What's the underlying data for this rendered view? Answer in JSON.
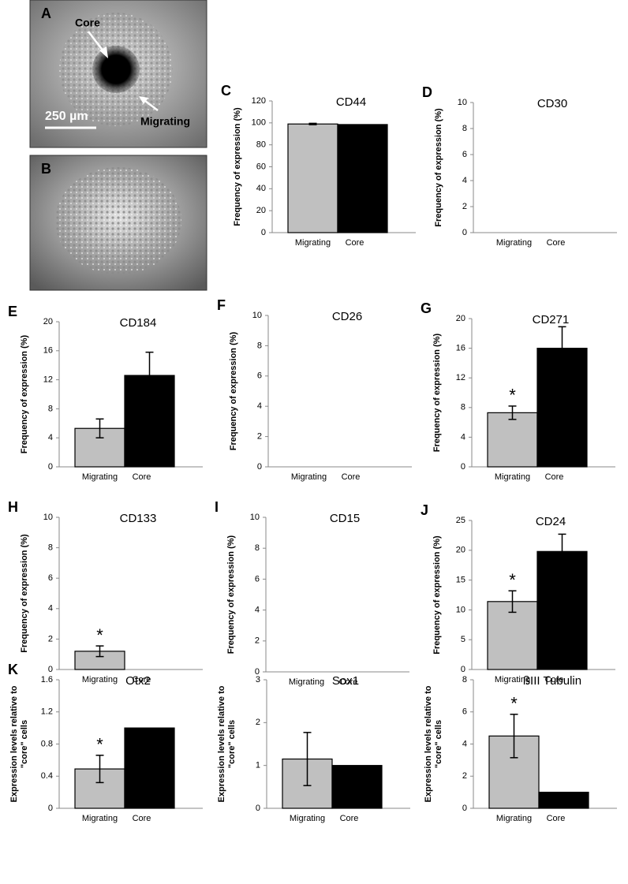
{
  "images": [
    {
      "label": "A",
      "texts": [
        "Core",
        "Migrating",
        "250 µm"
      ]
    },
    {
      "label": "B"
    }
  ],
  "chart_data": [
    {
      "type": "bar",
      "panel_label": "C",
      "title": "CD44",
      "ylabel": [
        "Frequency of expression (%)"
      ],
      "categories": [
        "Migrating",
        "Core"
      ],
      "values": [
        99,
        98.5
      ],
      "errors": [
        0.6,
        null
      ],
      "significance": [
        null,
        null
      ],
      "colors": [
        "#c0c0c0",
        "#000000"
      ],
      "ylim": [
        0,
        120
      ],
      "yticks": [
        0,
        20,
        40,
        60,
        80,
        100,
        120
      ]
    },
    {
      "type": "bar",
      "panel_label": "D",
      "title": "CD30",
      "ylabel": [
        "Frequency of expression (%)"
      ],
      "categories": [
        "Migrating",
        "Core"
      ],
      "values": [
        0,
        0
      ],
      "errors": [
        null,
        null
      ],
      "significance": [
        null,
        null
      ],
      "colors": [
        "#c0c0c0",
        "#000000"
      ],
      "ylim": [
        0,
        10
      ],
      "yticks": [
        0,
        2,
        4,
        6,
        8,
        10
      ]
    },
    {
      "type": "bar",
      "panel_label": "E",
      "title": "CD184",
      "ylabel": [
        "Frequency of expression (%)"
      ],
      "categories": [
        "Migrating",
        "Core"
      ],
      "values": [
        5.3,
        12.6
      ],
      "errors": [
        1.3,
        3.2
      ],
      "significance": [
        null,
        null
      ],
      "colors": [
        "#c0c0c0",
        "#000000"
      ],
      "ylim": [
        0,
        20
      ],
      "yticks": [
        0,
        4,
        8,
        12,
        16,
        20
      ]
    },
    {
      "type": "bar",
      "panel_label": "F",
      "title": "CD26",
      "ylabel": [
        "Frequency of expression (%)"
      ],
      "categories": [
        "Migrating",
        "Core"
      ],
      "values": [
        0,
        0
      ],
      "errors": [
        null,
        null
      ],
      "significance": [
        null,
        null
      ],
      "colors": [
        "#c0c0c0",
        "#000000"
      ],
      "ylim": [
        0,
        10
      ],
      "yticks": [
        0,
        2,
        4,
        6,
        8,
        10
      ]
    },
    {
      "type": "bar",
      "panel_label": "G",
      "title": "CD271",
      "ylabel": [
        "Frequency of expression (%)"
      ],
      "categories": [
        "Migrating",
        "Core"
      ],
      "values": [
        7.3,
        16
      ],
      "errors": [
        0.9,
        2.9
      ],
      "significance": [
        "*",
        null
      ],
      "colors": [
        "#c0c0c0",
        "#000000"
      ],
      "ylim": [
        0,
        20
      ],
      "yticks": [
        0,
        4,
        8,
        12,
        16,
        20
      ]
    },
    {
      "type": "bar",
      "panel_label": "H",
      "title": "CD133",
      "ylabel": [
        "Frequency of expression (%)"
      ],
      "categories": [
        "Migrating",
        "Core"
      ],
      "values": [
        1.2,
        0
      ],
      "errors": [
        0.35,
        null
      ],
      "significance": [
        "*",
        null
      ],
      "colors": [
        "#c0c0c0",
        "#000000"
      ],
      "ylim": [
        0,
        10
      ],
      "yticks": [
        0,
        2,
        4,
        6,
        8,
        10
      ]
    },
    {
      "type": "bar",
      "panel_label": "I",
      "title": "CD15",
      "ylabel": [
        "Frequency of expression (%)"
      ],
      "categories": [
        "Migrating",
        "Core"
      ],
      "values": [
        0,
        0
      ],
      "errors": [
        null,
        null
      ],
      "significance": [
        null,
        null
      ],
      "colors": [
        "#c0c0c0",
        "#000000"
      ],
      "ylim": [
        0,
        10
      ],
      "yticks": [
        0,
        2,
        4,
        6,
        8,
        10
      ]
    },
    {
      "type": "bar",
      "panel_label": "J",
      "title": "CD24",
      "ylabel": [
        "Frequency of expression (%)"
      ],
      "categories": [
        "Migrating",
        "Core"
      ],
      "values": [
        11.4,
        19.8
      ],
      "errors": [
        1.8,
        2.9
      ],
      "significance": [
        "*",
        null
      ],
      "colors": [
        "#c0c0c0",
        "#000000"
      ],
      "ylim": [
        0,
        25
      ],
      "yticks": [
        0,
        5,
        10,
        15,
        20,
        25
      ]
    },
    {
      "type": "bar",
      "panel_label": "K",
      "title": "Otx2",
      "ylabel": [
        "Expression levels relative to",
        "\"core\" cells"
      ],
      "categories": [
        "Migrating",
        "Core"
      ],
      "values": [
        0.49,
        1.0
      ],
      "errors": [
        0.17,
        null
      ],
      "significance": [
        "*",
        null
      ],
      "colors": [
        "#c0c0c0",
        "#000000"
      ],
      "ylim": [
        0,
        1.6
      ],
      "yticks": [
        0,
        0.4,
        0.8,
        1.2,
        1.6
      ]
    },
    {
      "type": "bar",
      "title": "Sox1",
      "ylabel": [
        "Expression levels relative to",
        "\"core\" cells"
      ],
      "categories": [
        "Migrating",
        "Core"
      ],
      "values": [
        1.15,
        1.0
      ],
      "errors": [
        0.62,
        null
      ],
      "significance": [
        null,
        null
      ],
      "colors": [
        "#c0c0c0",
        "#000000"
      ],
      "ylim": [
        0,
        3
      ],
      "yticks": [
        0,
        1,
        2,
        3
      ]
    },
    {
      "type": "bar",
      "title": "ßIII Tubulin",
      "ylabel": [
        "Expression levels relative to",
        "\"core\" cells"
      ],
      "categories": [
        "Migrating",
        "Core"
      ],
      "values": [
        4.5,
        1.0
      ],
      "errors": [
        1.35,
        null
      ],
      "significance": [
        "*",
        null
      ],
      "colors": [
        "#c0c0c0",
        "#000000"
      ],
      "ylim": [
        0,
        8
      ],
      "yticks": [
        0,
        2,
        4,
        6,
        8
      ]
    }
  ]
}
